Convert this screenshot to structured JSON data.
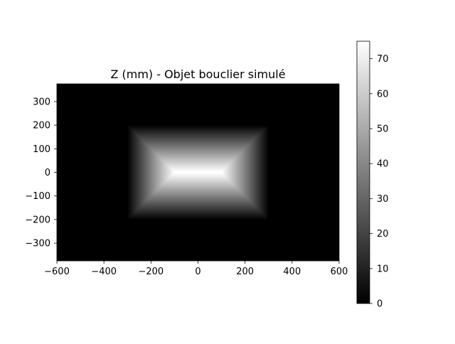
{
  "chart_data": {
    "type": "heatmap",
    "title": "Z (mm) - Objet bouclier simulé",
    "colormap": "gray",
    "xlim": [
      -600,
      600
    ],
    "ylim": [
      -375,
      375
    ],
    "x_ticks": [
      -600,
      -400,
      -200,
      0,
      200,
      400,
      600
    ],
    "x_tick_labels": [
      "−600",
      "−400",
      "−200",
      "0",
      "200",
      "400",
      "600"
    ],
    "y_ticks": [
      -300,
      -200,
      -100,
      0,
      100,
      200,
      300
    ],
    "y_tick_labels": [
      "−300",
      "−200",
      "−100",
      "0",
      "100",
      "200",
      "300"
    ],
    "shape": {
      "type": "truncated-pyramid",
      "base_x": [
        -300,
        300
      ],
      "base_y": [
        -200,
        200
      ],
      "plateau_x": [
        -100,
        100
      ],
      "plateau_y": [
        -3,
        3
      ],
      "peak_z": 75,
      "background_z": 0
    },
    "colorbar": {
      "min": 0,
      "max": 75,
      "ticks": [
        0,
        10,
        20,
        30,
        40,
        50,
        60,
        70
      ],
      "tick_labels": [
        "0",
        "10",
        "20",
        "30",
        "40",
        "50",
        "60",
        "70"
      ]
    }
  }
}
